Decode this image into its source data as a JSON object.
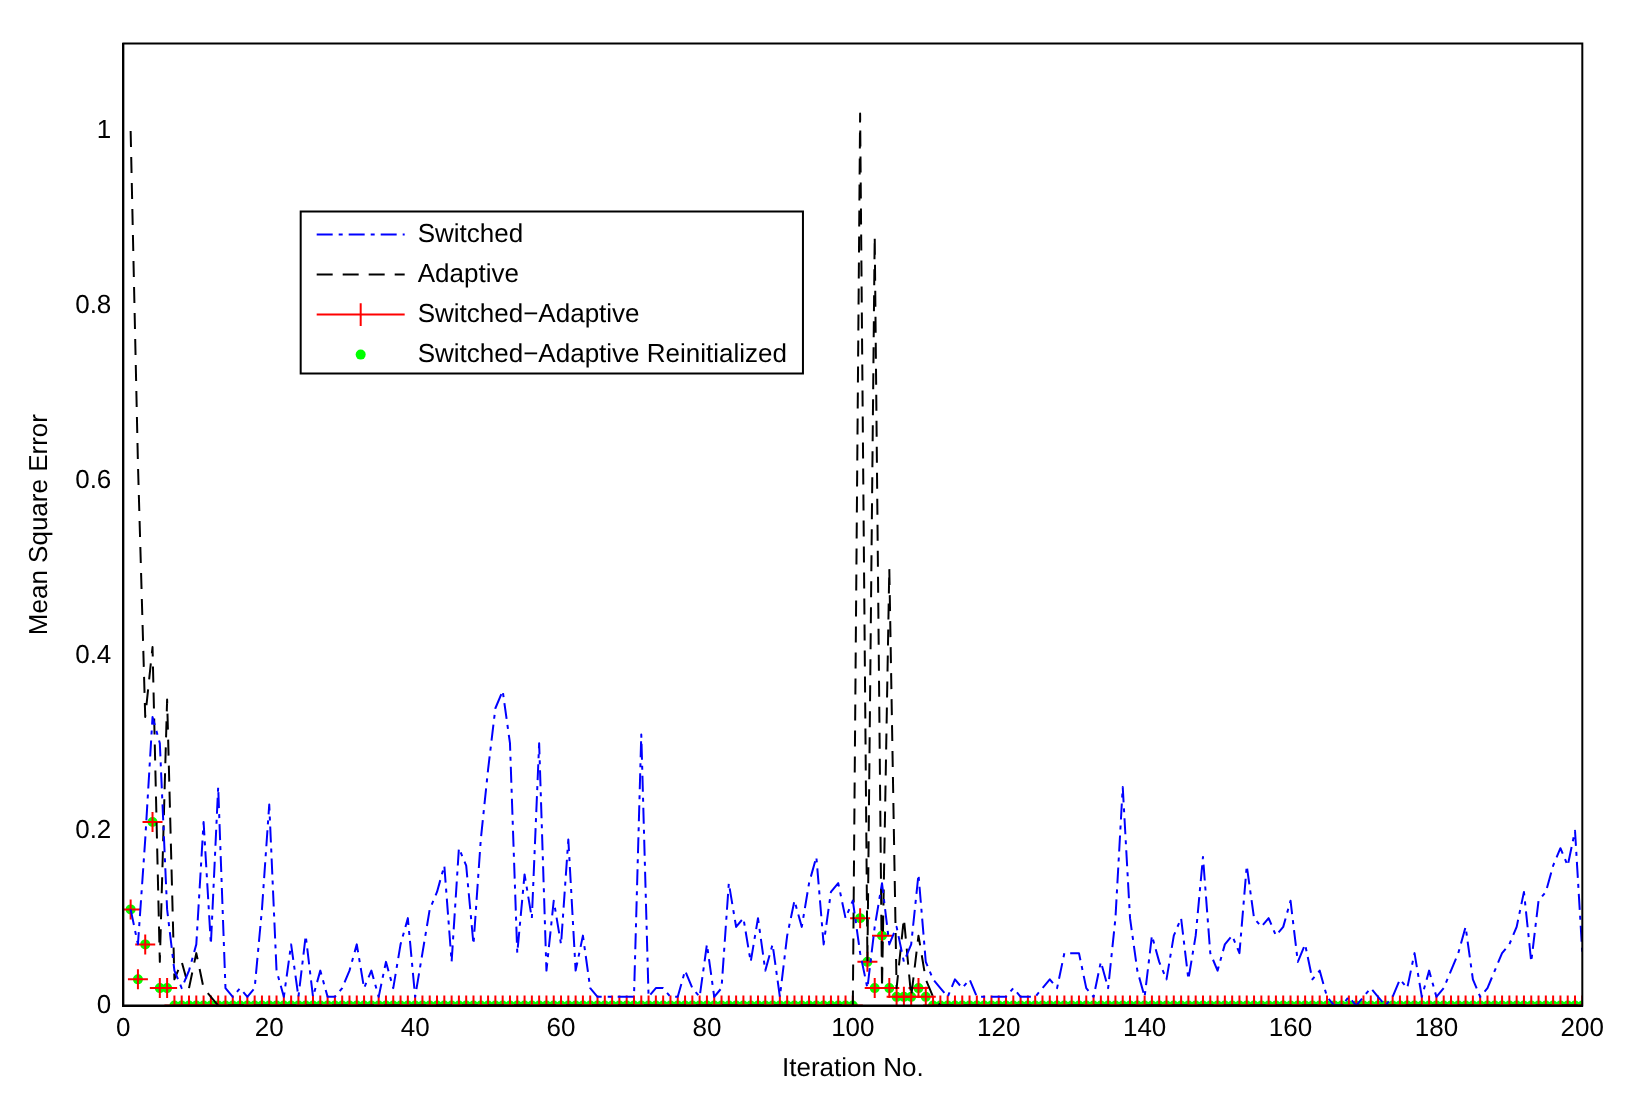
{
  "chart_data": {
    "type": "line",
    "xlabel": "Iteration No.",
    "ylabel": "Mean Square Error",
    "xlim": [
      0,
      200
    ],
    "xticks": [
      0,
      20,
      40,
      60,
      80,
      100,
      120,
      140,
      160,
      180,
      200
    ],
    "ylim": [
      0,
      1.1
    ],
    "yticks": [
      0,
      0.2,
      0.4,
      0.6,
      0.8,
      1
    ],
    "legend": "top left",
    "x": [
      1,
      2,
      3,
      4,
      5,
      6,
      7,
      8,
      9,
      10,
      11,
      12,
      13,
      14,
      15,
      16,
      17,
      18,
      19,
      20,
      21,
      22,
      23,
      24,
      25,
      26,
      27,
      28,
      29,
      30,
      31,
      32,
      33,
      34,
      35,
      36,
      37,
      38,
      39,
      40,
      41,
      42,
      43,
      44,
      45,
      46,
      47,
      48,
      49,
      50,
      51,
      52,
      53,
      54,
      55,
      56,
      57,
      58,
      59,
      60,
      61,
      62,
      63,
      64,
      65,
      66,
      67,
      68,
      69,
      70,
      71,
      72,
      73,
      74,
      75,
      76,
      77,
      78,
      79,
      80,
      81,
      82,
      83,
      84,
      85,
      86,
      87,
      88,
      89,
      90,
      91,
      92,
      93,
      94,
      95,
      96,
      97,
      98,
      99,
      100,
      101,
      102,
      103,
      104,
      105,
      106,
      107,
      108,
      109,
      110,
      111,
      112,
      113,
      114,
      115,
      116,
      117,
      118,
      119,
      120,
      121,
      122,
      123,
      124,
      125,
      126,
      127,
      128,
      129,
      130,
      131,
      132,
      133,
      134,
      135,
      136,
      137,
      138,
      139,
      140,
      141,
      142,
      143,
      144,
      145,
      146,
      147,
      148,
      149,
      150,
      151,
      152,
      153,
      154,
      155,
      156,
      157,
      158,
      159,
      160,
      161,
      162,
      163,
      164,
      165,
      166,
      167,
      168,
      169,
      170,
      171,
      172,
      173,
      174,
      175,
      176,
      177,
      178,
      179,
      180,
      181,
      182,
      183,
      184,
      185,
      186,
      187,
      188,
      189,
      190,
      191,
      192,
      193,
      194,
      195,
      196,
      197,
      198,
      199,
      200
    ],
    "series": [
      {
        "name": "Switched",
        "type": "line",
        "color": "#0000ff",
        "line_style": "dashdot",
        "marker": "none",
        "values": [
          0.11,
          0.07,
          0.19,
          0.33,
          0.3,
          0.11,
          0.04,
          0.02,
          0.04,
          0.07,
          0.21,
          0.07,
          0.25,
          0.02,
          0.01,
          0.02,
          0.01,
          0.02,
          0.11,
          0.23,
          0.04,
          0.01,
          0.07,
          0.01,
          0.08,
          0.01,
          0.04,
          0.01,
          0.01,
          0.02,
          0.04,
          0.07,
          0.02,
          0.04,
          0.01,
          0.05,
          0.02,
          0.07,
          0.1,
          0.01,
          0.06,
          0.11,
          0.13,
          0.16,
          0.05,
          0.18,
          0.16,
          0.07,
          0.19,
          0.27,
          0.34,
          0.36,
          0.3,
          0.06,
          0.15,
          0.1,
          0.3,
          0.04,
          0.12,
          0.07,
          0.19,
          0.04,
          0.08,
          0.02,
          0.01,
          0.01,
          0.01,
          0.01,
          0.01,
          0.01,
          0.31,
          0.01,
          0.02,
          0.02,
          0.01,
          0.01,
          0.04,
          0.02,
          0.01,
          0.07,
          0.01,
          0.02,
          0.14,
          0.09,
          0.1,
          0.05,
          0.1,
          0.04,
          0.07,
          0.01,
          0.08,
          0.12,
          0.09,
          0.14,
          0.17,
          0.07,
          0.13,
          0.14,
          0.1,
          0.12,
          0.06,
          0.02,
          0.09,
          0.14,
          0.07,
          0.09,
          0.05,
          0.07,
          0.15,
          0.05,
          0.03,
          0.02,
          0.01,
          0.03,
          0.02,
          0.03,
          0.01,
          0.01,
          0.01,
          0.01,
          0.01,
          0.02,
          0.01,
          0.01,
          0.01,
          0.02,
          0.03,
          0.02,
          0.06,
          0.06,
          0.06,
          0.02,
          0.01,
          0.05,
          0.02,
          0.1,
          0.25,
          0.1,
          0.04,
          0.01,
          0.08,
          0.05,
          0.03,
          0.08,
          0.1,
          0.03,
          0.08,
          0.17,
          0.06,
          0.04,
          0.07,
          0.08,
          0.06,
          0.16,
          0.1,
          0.09,
          0.1,
          0.08,
          0.09,
          0.12,
          0.05,
          0.07,
          0.03,
          0.04,
          0.01,
          0,
          0,
          0.01,
          0,
          0.01,
          0.02,
          0.01,
          0,
          0.01,
          0.03,
          0.02,
          0.06,
          0.01,
          0.04,
          0.01,
          0.02,
          0.04,
          0.06,
          0.09,
          0.03,
          0.01,
          0.02,
          0.04,
          0.06,
          0.07,
          0.09,
          0.13,
          0.05,
          0.12,
          0.13,
          0.16,
          0.18,
          0.16,
          0.2,
          0.06
        ]
      },
      {
        "name": "Adaptive",
        "type": "line",
        "color": "#000000",
        "line_style": "dashed",
        "marker": "none",
        "x": [
          1,
          2,
          3,
          4,
          5,
          6,
          7,
          8,
          9,
          10,
          11,
          12,
          13,
          100,
          101,
          102,
          103,
          104,
          105,
          106,
          107,
          108,
          109,
          110,
          111,
          112,
          200
        ],
        "values": [
          1.0,
          0.62,
          0.33,
          0.41,
          0.05,
          0.35,
          0.03,
          0.05,
          0.02,
          0.06,
          0.02,
          0.01,
          0,
          0,
          1.02,
          0.05,
          0.88,
          0.02,
          0.5,
          0.02,
          0.1,
          0.01,
          0.08,
          0.03,
          0.01,
          0,
          0
        ]
      },
      {
        "name": "Switched−Adaptive",
        "type": "scatter",
        "color": "#ff0000",
        "marker": "cross",
        "values": [
          0.11,
          0.03,
          0.07,
          0.21,
          0.02,
          0.02,
          0,
          0,
          0,
          0,
          0,
          0,
          0,
          0,
          0,
          0,
          0,
          0,
          0,
          0,
          0,
          0,
          0,
          0,
          0,
          0,
          0,
          0,
          0,
          0,
          0,
          0,
          0,
          0,
          0,
          0,
          0,
          0,
          0,
          0,
          0,
          0,
          0,
          0,
          0,
          0,
          0,
          0,
          0,
          0,
          0,
          0,
          0,
          0,
          0,
          0,
          0,
          0,
          0,
          0,
          0,
          0,
          0,
          0,
          0,
          0,
          0,
          0,
          0,
          0,
          0,
          0,
          0,
          0,
          0,
          0,
          0,
          0,
          0,
          0,
          0,
          0,
          0,
          0,
          0,
          0,
          0,
          0,
          0,
          0,
          0,
          0,
          0,
          0,
          0,
          0,
          0,
          0,
          0,
          0,
          0.1,
          0.05,
          0.02,
          0.08,
          0.02,
          0.01,
          0.01,
          0.01,
          0.02,
          0.01,
          0,
          0,
          0,
          0,
          0,
          0,
          0,
          0,
          0,
          0,
          0,
          0,
          0,
          0,
          0,
          0,
          0,
          0,
          0,
          0,
          0,
          0,
          0,
          0,
          0,
          0,
          0,
          0,
          0,
          0,
          0,
          0,
          0,
          0,
          0,
          0,
          0,
          0,
          0,
          0,
          0,
          0,
          0,
          0,
          0,
          0,
          0,
          0,
          0,
          0,
          0,
          0,
          0,
          0,
          0,
          0,
          0,
          0,
          0,
          0,
          0,
          0,
          0,
          0,
          0,
          0,
          0,
          0,
          0,
          0,
          0,
          0,
          0,
          0,
          0,
          0,
          0,
          0,
          0,
          0,
          0,
          0,
          0,
          0,
          0,
          0,
          0,
          0,
          0,
          0
        ]
      },
      {
        "name": "Switched−Adaptive Reinitialized",
        "type": "scatter",
        "color": "#00ff00",
        "marker": "circle",
        "values": [
          0.11,
          0.03,
          0.07,
          0.21,
          0.02,
          0.02,
          0,
          0,
          0,
          0,
          0,
          0,
          0,
          0,
          0,
          0,
          0,
          0,
          0,
          0,
          0,
          0,
          0,
          0,
          0,
          0,
          0,
          0,
          0,
          0,
          0,
          0,
          0,
          0,
          0,
          0,
          0,
          0,
          0,
          0,
          0,
          0,
          0,
          0,
          0,
          0,
          0,
          0,
          0,
          0,
          0,
          0,
          0,
          0,
          0,
          0,
          0,
          0,
          0,
          0,
          0,
          0,
          0,
          0,
          0,
          0,
          0,
          0,
          0,
          0,
          0,
          0,
          0,
          0,
          0,
          0,
          0,
          0,
          0,
          0,
          0,
          0,
          0,
          0,
          0,
          0,
          0,
          0,
          0,
          0,
          0,
          0,
          0,
          0,
          0,
          0,
          0,
          0,
          0,
          0,
          0.1,
          0.05,
          0.02,
          0.08,
          0.02,
          0.01,
          0.01,
          0.01,
          0.02,
          0.01,
          0,
          0,
          0,
          0,
          0,
          0,
          0,
          0,
          0,
          0,
          0,
          0,
          0,
          0,
          0,
          0,
          0,
          0,
          0,
          0,
          0,
          0,
          0,
          0,
          0,
          0,
          0,
          0,
          0,
          0,
          0,
          0,
          0,
          0,
          0,
          0,
          0,
          0,
          0,
          0,
          0,
          0,
          0,
          0,
          0,
          0,
          0,
          0,
          0,
          0,
          0,
          0,
          0,
          0,
          0,
          0,
          0,
          0,
          0,
          0,
          0,
          0,
          0,
          0,
          0,
          0,
          0,
          0,
          0,
          0,
          0,
          0,
          0,
          0,
          0,
          0,
          0,
          0,
          0,
          0,
          0,
          0,
          0,
          0,
          0,
          0,
          0,
          0,
          0,
          0
        ]
      }
    ]
  }
}
